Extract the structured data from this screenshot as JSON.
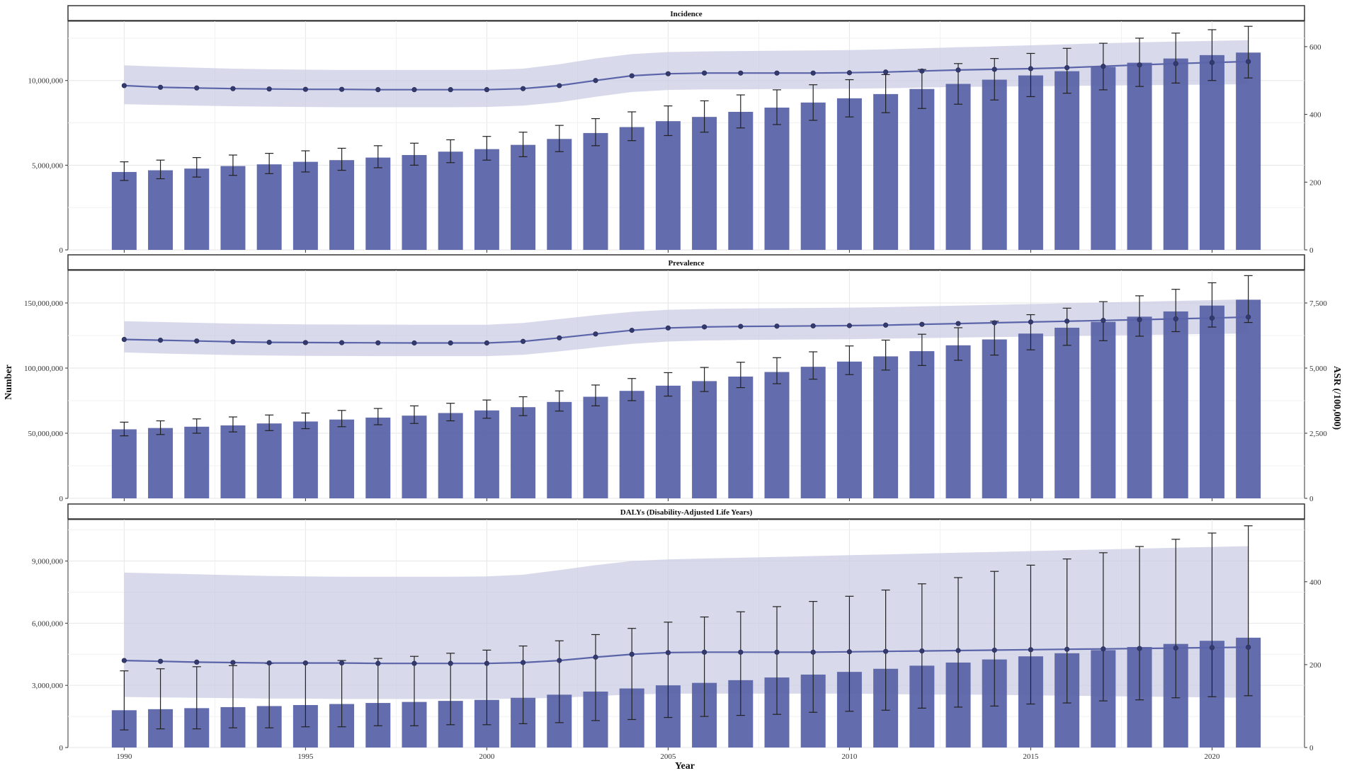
{
  "chart_data": {
    "type": "bar",
    "x": [
      1990,
      1991,
      1992,
      1993,
      1994,
      1995,
      1996,
      1997,
      1998,
      1999,
      2000,
      2001,
      2002,
      2003,
      2004,
      2005,
      2006,
      2007,
      2008,
      2009,
      2010,
      2011,
      2012,
      2013,
      2014,
      2015,
      2016,
      2017,
      2018,
      2019,
      2020,
      2021
    ],
    "xlabel": "Year",
    "ylabel_left": "Number",
    "ylabel_right": "ASR (/100,000)",
    "x_ticks": [
      1990,
      1995,
      2000,
      2005,
      2010,
      2015,
      2020
    ],
    "x_tick_labels": [
      "1990",
      "1995",
      "2000",
      "2005",
      "2010",
      "2015",
      "2020"
    ],
    "bar_color": "#5B64A8",
    "line_color": "#5B64A8",
    "band_color": "#C9CCE3",
    "grid": true,
    "panels": [
      {
        "title": "Incidence",
        "ylim_left": [
          0,
          13500000
        ],
        "yticks_left": [
          0,
          5000000,
          10000000
        ],
        "ytick_labels_left": [
          "0",
          "5,000,000",
          "10,000,000"
        ],
        "ylim_right": [
          0,
          675
        ],
        "yticks_right": [
          0,
          200,
          400,
          600
        ],
        "ytick_labels_right": [
          "0",
          "200",
          "400",
          "600"
        ],
        "number": [
          4600000.0,
          4700000.0,
          4800000.0,
          4950000.0,
          5050000.0,
          5200000.0,
          5300000.0,
          5450000.0,
          5600000.0,
          5800000.0,
          5950000.0,
          6200000.0,
          6550000.0,
          6900000.0,
          7250000.0,
          7600000.0,
          7850000.0,
          8150000.0,
          8400000.0,
          8700000.0,
          8950000.0,
          9200000.0,
          9500000.0,
          9800000.0,
          10050000.0,
          10300000.0,
          10550000.0,
          10800000.0,
          11050000.0,
          11300000.0,
          11500000.0,
          11650000.0
        ],
        "number_lower": [
          4100000.0,
          4200000.0,
          4300000.0,
          4400000.0,
          4500000.0,
          4600000.0,
          4700000.0,
          4850000.0,
          5000000.0,
          5150000.0,
          5300000.0,
          5500000.0,
          5800000.0,
          6150000.0,
          6450000.0,
          6750000.0,
          6950000.0,
          7200000.0,
          7400000.0,
          7650000.0,
          7850000.0,
          8100000.0,
          8350000.0,
          8600000.0,
          8850000.0,
          9050000.0,
          9250000.0,
          9450000.0,
          9650000.0,
          9850000.0,
          10000000.0,
          10150000.0
        ],
        "number_upper": [
          5200000.0,
          5300000.0,
          5450000.0,
          5600000.0,
          5700000.0,
          5850000.0,
          6000000.0,
          6150000.0,
          6300000.0,
          6500000.0,
          6700000.0,
          6950000.0,
          7350000.0,
          7750000.0,
          8150000.0,
          8500000.0,
          8800000.0,
          9150000.0,
          9450000.0,
          9750000.0,
          10050000.0,
          10350000.0,
          10650000.0,
          11000000.0,
          11300000.0,
          11600000.0,
          11900000.0,
          12200000.0,
          12500000.0,
          12800000.0,
          13000000.0,
          13200000.0
        ],
        "asr": [
          485,
          480,
          478,
          476,
          475,
          474,
          474,
          473,
          473,
          473,
          473,
          476,
          485,
          500,
          514,
          520,
          522,
          522,
          522,
          522,
          523,
          525,
          528,
          531,
          533,
          535,
          538,
          542,
          546,
          550,
          553,
          556
        ],
        "asr_lower": [
          430,
          428,
          426,
          424,
          423,
          422,
          421,
          421,
          421,
          421,
          422,
          426,
          436,
          452,
          466,
          472,
          474,
          474,
          475,
          475,
          476,
          477,
          479,
          481,
          482,
          483,
          484,
          485,
          486,
          487,
          488,
          489
        ],
        "asr_upper": [
          545,
          541,
          538,
          535,
          533,
          532,
          531,
          531,
          531,
          531,
          531,
          535,
          548,
          565,
          578,
          584,
          586,
          587,
          588,
          589,
          590,
          592,
          595,
          598,
          601,
          604,
          607,
          610,
          613,
          615,
          617,
          619
        ]
      },
      {
        "title": "Prevalence",
        "ylim_left": [
          0,
          175000000
        ],
        "yticks_left": [
          0,
          50000000,
          100000000,
          150000000
        ],
        "ytick_labels_left": [
          "0",
          "50,000,000",
          "100,000,000",
          "150,000,000"
        ],
        "ylim_right": [
          0,
          8750
        ],
        "yticks_right": [
          0,
          2500,
          5000,
          7500
        ],
        "ytick_labels_right": [
          "0",
          "2,500",
          "5,000",
          "7,500"
        ],
        "number": [
          53000000.0,
          54000000.0,
          55000000.0,
          56000000.0,
          57500000.0,
          59000000.0,
          60500000.0,
          62000000.0,
          63500000.0,
          65500000.0,
          67500000.0,
          70000000.0,
          74000000.0,
          78000000.0,
          82500000.0,
          86500000.0,
          90000000.0,
          93500000.0,
          97000000.0,
          101000000.0,
          105000000.0,
          109000000.0,
          113000000.0,
          117500000.0,
          122000000.0,
          126500000.0,
          131000000.0,
          135500000.0,
          139500000.0,
          143500000.0,
          148000000.0,
          152500000.0
        ],
        "number_lower": [
          48000000.0,
          49000000.0,
          50000000.0,
          51000000.0,
          52000000.0,
          53500000.0,
          55000000.0,
          56500000.0,
          57500000.0,
          59500000.0,
          61500000.0,
          63500000.0,
          67000000.0,
          71000000.0,
          75000000.0,
          78500000.0,
          82000000.0,
          85000000.0,
          88000000.0,
          91500000.0,
          95000000.0,
          98500000.0,
          102000000.0,
          106000000.0,
          110000000.0,
          114000000.0,
          117500000.0,
          121000000.0,
          124500000.0,
          128000000.0,
          131500000.0,
          135000000.0
        ],
        "number_upper": [
          58500000.0,
          59500000.0,
          61000000.0,
          62500000.0,
          64000000.0,
          65500000.0,
          67500000.0,
          69000000.0,
          71000000.0,
          73000000.0,
          75500000.0,
          78000000.0,
          82500000.0,
          87000000.0,
          92000000.0,
          96500000.0,
          100500000.0,
          104500000.0,
          108000000.0,
          112500000.0,
          117000000.0,
          121500000.0,
          126000000.0,
          131000000.0,
          136000000.0,
          141000000.0,
          146000000.0,
          151000000.0,
          155500000.0,
          160500000.0,
          165500000.0,
          171000000.0
        ],
        "asr": [
          6100,
          6070,
          6040,
          6010,
          5990,
          5980,
          5975,
          5970,
          5965,
          5965,
          5965,
          6025,
          6160,
          6310,
          6450,
          6540,
          6580,
          6600,
          6610,
          6620,
          6630,
          6650,
          6680,
          6710,
          6740,
          6770,
          6800,
          6830,
          6860,
          6890,
          6920,
          6960
        ],
        "asr_lower": [
          5600,
          5560,
          5530,
          5500,
          5480,
          5470,
          5465,
          5460,
          5460,
          5460,
          5460,
          5510,
          5640,
          5790,
          5930,
          6020,
          6060,
          6080,
          6090,
          6100,
          6110,
          6130,
          6150,
          6170,
          6190,
          6210,
          6230,
          6250,
          6270,
          6290,
          6310,
          6330
        ],
        "asr_upper": [
          6800,
          6770,
          6740,
          6710,
          6690,
          6680,
          6675,
          6670,
          6665,
          6665,
          6665,
          6730,
          6880,
          7030,
          7160,
          7240,
          7270,
          7290,
          7300,
          7310,
          7320,
          7340,
          7370,
          7400,
          7430,
          7460,
          7490,
          7520,
          7550,
          7580,
          7610,
          7640
        ]
      },
      {
        "title": "DALYs (Disability-Adjusted Life Years)",
        "ylim_left": [
          0,
          11000000
        ],
        "yticks_left": [
          0,
          3000000,
          6000000,
          9000000
        ],
        "ytick_labels_left": [
          "0",
          "3,000,000",
          "6,000,000",
          "9,000,000"
        ],
        "ylim_right": [
          0,
          550
        ],
        "yticks_right": [
          0,
          200,
          400
        ],
        "ytick_labels_right": [
          "0",
          "200",
          "400"
        ],
        "number": [
          1800000.0,
          1850000.0,
          1900000.0,
          1950000.0,
          2000000.0,
          2050000.0,
          2100000.0,
          2150000.0,
          2200000.0,
          2250000.0,
          2300000.0,
          2400000.0,
          2550000.0,
          2700000.0,
          2850000.0,
          3000000.0,
          3120000.0,
          3250000.0,
          3380000.0,
          3520000.0,
          3650000.0,
          3800000.0,
          3950000.0,
          4100000.0,
          4250000.0,
          4400000.0,
          4550000.0,
          4700000.0,
          4850000.0,
          5000000.0,
          5150000.0,
          5300000.0
        ],
        "number_lower": [
          850000.0,
          900000.0,
          900000.0,
          950000.0,
          950000.0,
          1000000.0,
          1000000.0,
          1050000.0,
          1050000.0,
          1100000.0,
          1100000.0,
          1150000.0,
          1200000.0,
          1300000.0,
          1350000.0,
          1450000.0,
          1500000.0,
          1550000.0,
          1600000.0,
          1700000.0,
          1750000.0,
          1800000.0,
          1900000.0,
          1950000.0,
          2000000.0,
          2100000.0,
          2150000.0,
          2250000.0,
          2300000.0,
          2400000.0,
          2450000.0,
          2500000.0
        ],
        "number_upper": [
          3700000.0,
          3800000.0,
          3900000.0,
          3950000.0,
          4050000.0,
          4100000.0,
          4200000.0,
          4300000.0,
          4400000.0,
          4550000.0,
          4700000.0,
          4900000.0,
          5150000.0,
          5450000.0,
          5750000.0,
          6050000.0,
          6300000.0,
          6550000.0,
          6800000.0,
          7050000.0,
          7300000.0,
          7600000.0,
          7900000.0,
          8200000.0,
          8500000.0,
          8800000.0,
          9100000.0,
          9400000.0,
          9700000.0,
          10050000.0,
          10350000.0,
          10700000.0
        ],
        "asr": [
          210,
          208,
          206,
          205,
          204,
          204,
          204,
          203,
          203,
          203,
          203,
          205,
          210,
          218,
          225,
          229,
          230,
          230,
          230,
          230,
          231,
          232,
          233,
          234,
          235,
          236,
          237,
          238,
          239,
          240,
          241,
          242
        ],
        "asr_lower": [
          122,
          121,
          120,
          119,
          118,
          118,
          117,
          117,
          117,
          117,
          117,
          118,
          120,
          124,
          128,
          130,
          130,
          130,
          130,
          130,
          130,
          129,
          128,
          128,
          127,
          126,
          125,
          124,
          123,
          122,
          121,
          120
        ],
        "asr_upper": [
          422,
          420,
          418,
          416,
          414,
          413,
          412,
          412,
          412,
          412,
          413,
          417,
          428,
          440,
          450,
          454,
          456,
          458,
          460,
          462,
          464,
          466,
          468,
          470,
          472,
          474,
          476,
          478,
          480,
          482,
          484,
          486
        ]
      }
    ]
  }
}
